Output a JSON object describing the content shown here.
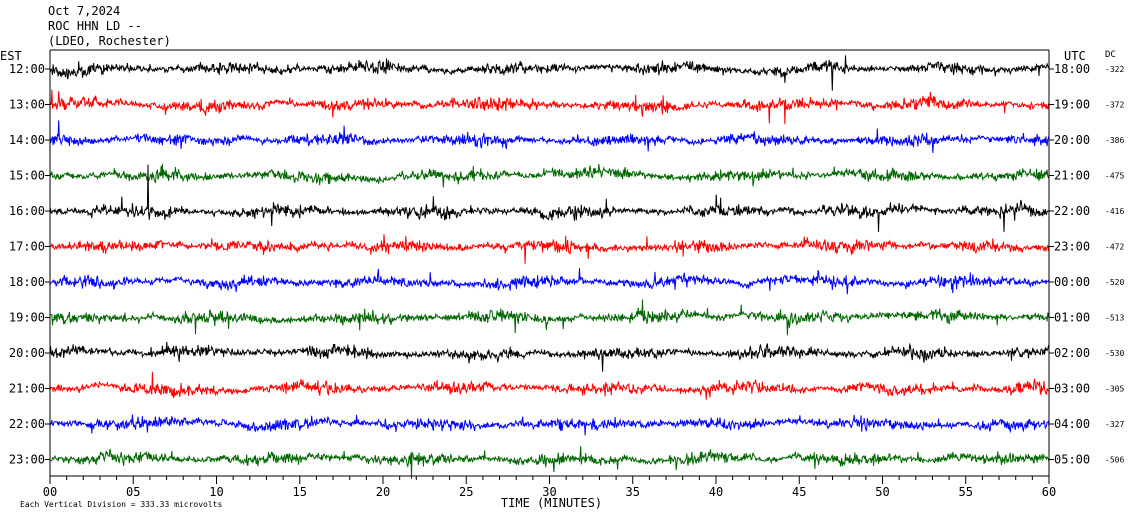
{
  "header": {
    "date": "Oct 7,2024",
    "station": "ROC HHN LD --",
    "location": "(LDEO, Rochester)"
  },
  "footnote": "Each Vertical Division =  333.33 microvolts",
  "colors": {
    "trace_cycle": [
      "#000000",
      "#ff0000",
      "#0000ff",
      "#006600"
    ],
    "axis": "#000000"
  },
  "chart_data": {
    "type": "line",
    "title": "",
    "xlabel": "TIME (MINUTES)",
    "x_ticks": [
      "00",
      "05",
      "10",
      "15",
      "20",
      "25",
      "30",
      "35",
      "40",
      "45",
      "50",
      "55",
      "60"
    ],
    "xlim": [
      0,
      60
    ],
    "left_axis_label": "EST",
    "right_axis_label": "UTC",
    "dc_label": "DC",
    "rows": [
      {
        "est": "12:00",
        "utc": "18:00",
        "dc": "-322",
        "color": "#000000"
      },
      {
        "est": "13:00",
        "utc": "19:00",
        "dc": "-372",
        "color": "#ff0000"
      },
      {
        "est": "14:00",
        "utc": "20:00",
        "dc": "-386",
        "color": "#0000ff"
      },
      {
        "est": "15:00",
        "utc": "21:00",
        "dc": "-475",
        "color": "#006600"
      },
      {
        "est": "16:00",
        "utc": "22:00",
        "dc": "-416",
        "color": "#000000"
      },
      {
        "est": "17:00",
        "utc": "23:00",
        "dc": "-472",
        "color": "#ff0000"
      },
      {
        "est": "18:00",
        "utc": "00:00",
        "dc": "-520",
        "color": "#0000ff"
      },
      {
        "est": "19:00",
        "utc": "01:00",
        "dc": "-513",
        "color": "#006600"
      },
      {
        "est": "20:00",
        "utc": "02:00",
        "dc": "-530",
        "color": "#000000"
      },
      {
        "est": "21:00",
        "utc": "03:00",
        "dc": "-305",
        "color": "#ff0000"
      },
      {
        "est": "22:00",
        "utc": "04:00",
        "dc": "-327",
        "color": "#0000ff"
      },
      {
        "est": "23:00",
        "utc": "05:00",
        "dc": "-506",
        "color": "#006600"
      }
    ]
  }
}
